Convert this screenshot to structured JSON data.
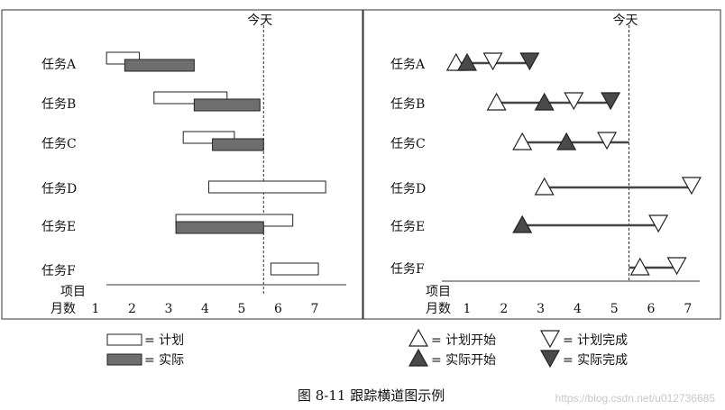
{
  "chart_data": [
    {
      "type": "gantt-bar",
      "title": "",
      "today": {
        "label": "今天",
        "x": 5.6
      },
      "y_header": "项目",
      "x_header": "月数",
      "x_ticks": [
        "1",
        "2",
        "3",
        "4",
        "5",
        "6",
        "7"
      ],
      "x_tick_values": [
        1,
        2,
        3,
        4,
        5,
        6,
        7
      ],
      "tasks": [
        {
          "name": "任务A",
          "plan": [
            1.3,
            2.2
          ],
          "actual": [
            1.8,
            3.7
          ]
        },
        {
          "name": "任务B",
          "plan": [
            2.6,
            4.6
          ],
          "actual": [
            3.7,
            5.5
          ]
        },
        {
          "name": "任务C",
          "plan": [
            3.4,
            4.8
          ],
          "actual": [
            4.2,
            5.6
          ]
        },
        {
          "name": "任务D",
          "plan": [
            4.1,
            7.3
          ],
          "actual": null
        },
        {
          "name": "任务E",
          "plan": [
            3.2,
            6.4
          ],
          "actual": [
            3.2,
            5.6
          ]
        },
        {
          "name": "任务F",
          "plan": [
            5.8,
            7.1
          ],
          "actual": null
        }
      ]
    },
    {
      "type": "milestone",
      "title": "",
      "today": {
        "label": "今天",
        "x": 5.4
      },
      "y_header": "项目",
      "x_header": "月数",
      "x_ticks": [
        "1",
        "2",
        "3",
        "4",
        "5",
        "6",
        "7"
      ],
      "x_tick_values": [
        1,
        2,
        3,
        4,
        5,
        6,
        7
      ],
      "tasks": [
        {
          "name": "任务A",
          "plan_start": 0.7,
          "actual_start": 1.0,
          "plan_end": 1.7,
          "actual_end": 2.7
        },
        {
          "name": "任务B",
          "plan_start": 1.8,
          "actual_start": 3.1,
          "plan_end": 3.9,
          "actual_end": 4.9
        },
        {
          "name": "任务C",
          "plan_start": 2.5,
          "actual_start": 3.7,
          "plan_end": 4.8,
          "actual_end": null,
          "line_end": 5.4
        },
        {
          "name": "任务D",
          "plan_start": 3.1,
          "actual_start": null,
          "plan_end": 7.1,
          "actual_end": null
        },
        {
          "name": "任务E",
          "plan_start": null,
          "actual_start": 2.5,
          "plan_end": 6.2,
          "actual_end": null
        },
        {
          "name": "任务F",
          "plan_start": 5.7,
          "actual_start": null,
          "plan_end": 6.7,
          "actual_end": null,
          "line_start": 5.4
        }
      ]
    }
  ],
  "legend_left": [
    {
      "kind": "plan",
      "label": "= 计划"
    },
    {
      "kind": "actual",
      "label": "= 实际"
    }
  ],
  "legend_right": [
    {
      "kind": "plan-start",
      "label": "= 计划开始"
    },
    {
      "kind": "plan-end",
      "label": "= 计划完成"
    },
    {
      "kind": "actual-start",
      "label": "= 实际开始"
    },
    {
      "kind": "actual-end",
      "label": "= 实际完成"
    }
  ],
  "caption": "图 8-11    跟踪横道图示例",
  "watermark": "https://blog.csdn.net/u012736685",
  "colors": {
    "frame": "#333333",
    "bar_fill": "#6e6e6e",
    "line": "#444444"
  }
}
